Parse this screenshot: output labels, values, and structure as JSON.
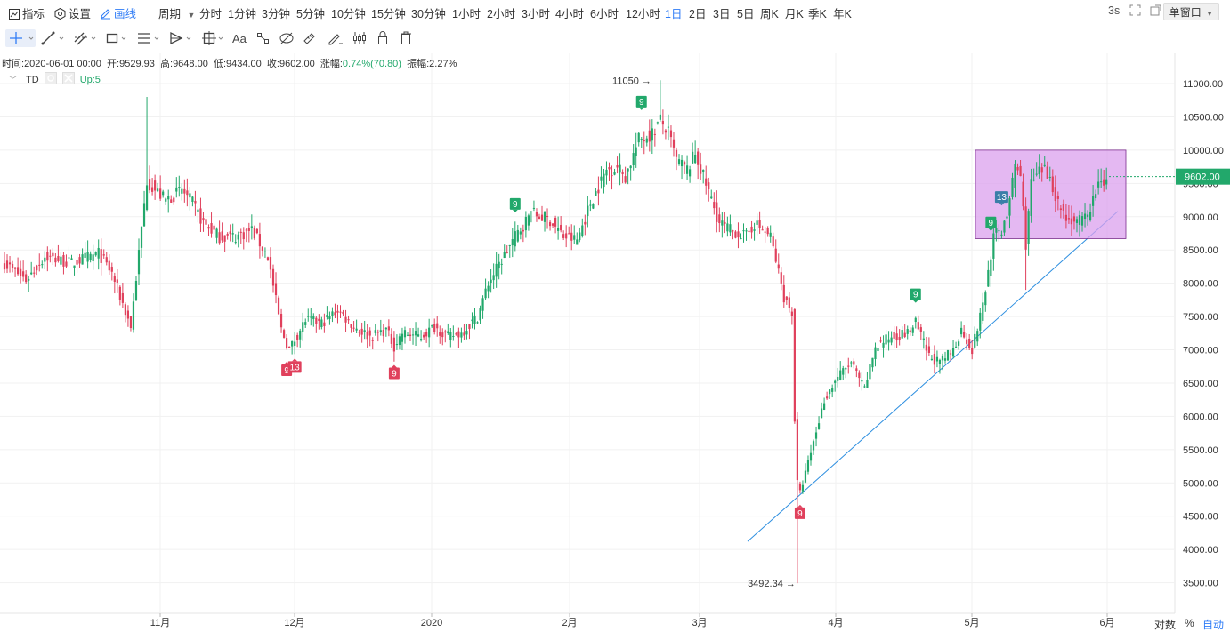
{
  "topbar": {
    "indicator_label": "指标",
    "settings_label": "设置",
    "draw_label": "画线",
    "period_label": "周期",
    "periods": [
      "分时",
      "1分钟",
      "3分钟",
      "5分钟",
      "10分钟",
      "15分钟",
      "30分钟",
      "1小时",
      "2小时",
      "3小时",
      "4小时",
      "6小时",
      "12小时",
      "1日",
      "2日",
      "3日",
      "5日",
      "周K",
      "月K",
      "季K",
      "年K"
    ],
    "active_period": "1日",
    "refresh_label": "3s",
    "window_mode": "单窗口"
  },
  "info": {
    "time_label": "时间:",
    "time": "2020-06-01 00:00",
    "open_label": "开:",
    "open": "9529.93",
    "high_label": "高:",
    "high": "9648.00",
    "low_label": "低:",
    "low": "9434.00",
    "close_label": "收:",
    "close": "9602.00",
    "change_label": "涨幅:",
    "change": "0.74%(70.80)",
    "amplitude_label": "振幅:",
    "amplitude": "2.27%"
  },
  "indicator_row": {
    "name": "TD",
    "status": "Up:5"
  },
  "bottom": {
    "log_label": "对数",
    "percent_label": "%",
    "auto_label": "自动"
  },
  "colors": {
    "up": "#22a86b",
    "down": "#e0405c",
    "accent": "#2f7cf6",
    "box_fill": "#dba0ee",
    "box_border": "#7a2c8c",
    "trendline": "#2e8fe0"
  },
  "chart_data": {
    "type": "candlestick",
    "ylim": [
      3400,
      11300
    ],
    "y_ticks": [
      "11000.00",
      "10500.00",
      "10000.00",
      "9500.00",
      "9000.00",
      "8500.00",
      "8000.00",
      "7500.00",
      "7000.00",
      "6500.00",
      "6000.00",
      "5500.00",
      "5000.00",
      "4500.00",
      "4000.00",
      "3500.00"
    ],
    "x_ticks": [
      "11月",
      "12月",
      "2020",
      "2月",
      "3月",
      "4月",
      "5月",
      "6月"
    ],
    "last_price": "9602.00",
    "high_annotation": "11050",
    "low_annotation": "3492.34",
    "td_labels": [
      {
        "text": "9",
        "dir": "down",
        "day": 105
      },
      {
        "text": "13",
        "dir": "down",
        "day": 108
      },
      {
        "text": "9",
        "dir": "down",
        "day": 145
      },
      {
        "text": "9",
        "dir": "up",
        "day": 190
      },
      {
        "text": "9",
        "dir": "up",
        "day": 237
      },
      {
        "text": "9",
        "dir": "down",
        "day": 296
      },
      {
        "text": "9",
        "dir": "up",
        "day": 339
      },
      {
        "text": "9",
        "dir": "up",
        "day": 367
      },
      {
        "text": "13",
        "dir": "up",
        "day": 371
      }
    ],
    "anchors": [
      [
        0,
        8300
      ],
      [
        8,
        8050
      ],
      [
        15,
        8400
      ],
      [
        25,
        8300
      ],
      [
        35,
        8450
      ],
      [
        40,
        8150
      ],
      [
        47,
        7350
      ],
      [
        50,
        8450
      ],
      [
        53,
        9550
      ],
      [
        56,
        9400
      ],
      [
        60,
        9250
      ],
      [
        66,
        9400
      ],
      [
        70,
        9200
      ],
      [
        74,
        8900
      ],
      [
        80,
        8700
      ],
      [
        86,
        8700
      ],
      [
        92,
        8800
      ],
      [
        98,
        8400
      ],
      [
        103,
        7300
      ],
      [
        106,
        7000
      ],
      [
        112,
        7450
      ],
      [
        118,
        7400
      ],
      [
        124,
        7600
      ],
      [
        130,
        7350
      ],
      [
        136,
        7200
      ],
      [
        142,
        7300
      ],
      [
        145,
        7050
      ],
      [
        148,
        7250
      ],
      [
        155,
        7200
      ],
      [
        160,
        7350
      ],
      [
        165,
        7200
      ],
      [
        170,
        7250
      ],
      [
        176,
        7500
      ],
      [
        180,
        8000
      ],
      [
        185,
        8350
      ],
      [
        190,
        8700
      ],
      [
        196,
        9050
      ],
      [
        203,
        8950
      ],
      [
        208,
        8700
      ],
      [
        213,
        8650
      ],
      [
        218,
        9200
      ],
      [
        224,
        9700
      ],
      [
        228,
        9750
      ],
      [
        231,
        9600
      ],
      [
        236,
        10150
      ],
      [
        241,
        10250
      ],
      [
        244,
        10450
      ],
      [
        247,
        10250
      ],
      [
        250,
        9850
      ],
      [
        254,
        9700
      ],
      [
        257,
        9950
      ],
      [
        263,
        9250
      ],
      [
        266,
        8900
      ],
      [
        270,
        8800
      ],
      [
        276,
        8700
      ],
      [
        279,
        8900
      ],
      [
        285,
        8700
      ],
      [
        290,
        7800
      ],
      [
        293,
        7550
      ],
      [
        294,
        5950
      ],
      [
        295,
        5000
      ],
      [
        296,
        4850
      ],
      [
        299,
        5300
      ],
      [
        305,
        6250
      ],
      [
        310,
        6600
      ],
      [
        315,
        6800
      ],
      [
        320,
        6400
      ],
      [
        324,
        7050
      ],
      [
        330,
        7200
      ],
      [
        336,
        7250
      ],
      [
        339,
        7400
      ],
      [
        344,
        6900
      ],
      [
        348,
        6800
      ],
      [
        353,
        7000
      ],
      [
        356,
        7300
      ],
      [
        360,
        7000
      ],
      [
        363,
        7500
      ],
      [
        365,
        7900
      ],
      [
        368,
        8700
      ],
      [
        371,
        8800
      ],
      [
        374,
        9200
      ],
      [
        376,
        9800
      ],
      [
        378,
        9600
      ],
      [
        380,
        8600
      ],
      [
        382,
        9500
      ],
      [
        386,
        9700
      ],
      [
        389,
        9600
      ],
      [
        392,
        9200
      ],
      [
        395,
        9000
      ],
      [
        399,
        8900
      ],
      [
        403,
        9000
      ],
      [
        406,
        9400
      ],
      [
        410,
        9602
      ]
    ],
    "extremes": [
      [
        244,
        11050
      ],
      [
        295,
        3492.34
      ]
    ]
  }
}
